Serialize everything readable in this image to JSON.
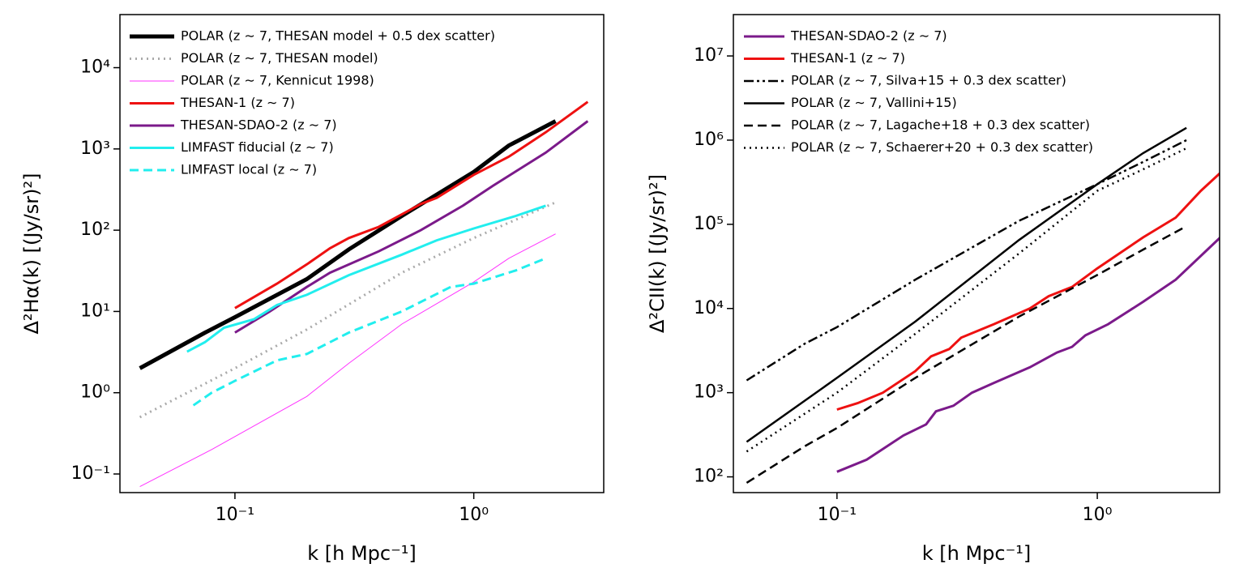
{
  "chart_data": [
    {
      "type": "line",
      "xlabel": "k [h Mpc⁻¹]",
      "ylabel": "Δ²Hα(k) [(Jy/sr)²]",
      "xscale": "log",
      "yscale": "log",
      "legend": "upper left",
      "xlim": [
        0.033,
        3.5
      ],
      "ylim": [
        0.059,
        45000
      ],
      "xticks": [
        {
          "value": 0.1,
          "label": "10⁻¹"
        },
        {
          "value": 1,
          "label": "10⁰"
        }
      ],
      "yticks": [
        {
          "value": 0.1,
          "label": "10⁻¹"
        },
        {
          "value": 1,
          "label": "10⁰"
        },
        {
          "value": 10,
          "label": "10¹"
        },
        {
          "value": 100,
          "label": "10²"
        },
        {
          "value": 1000,
          "label": "10³"
        },
        {
          "value": 10000,
          "label": "10⁴"
        }
      ],
      "series": [
        {
          "name": "POLAR (z ∼ 7, THESAN model + 0.5 dex scatter)",
          "color": "#000000",
          "linestyle": "solid",
          "linewidth": 5,
          "x": [
            0.04,
            0.075,
            0.1,
            0.2,
            0.3,
            0.5,
            1.0,
            1.4,
            2.2
          ],
          "values": [
            2.0,
            5.5,
            8.5,
            25,
            58,
            150,
            520,
            1100,
            2200
          ]
        },
        {
          "name": "POLAR (z ∼ 7, THESAN model)",
          "color": "#aaaaaa",
          "linestyle": "dotted",
          "linewidth": 3,
          "x": [
            0.04,
            0.1,
            0.2,
            0.5,
            1.0,
            2.2
          ],
          "values": [
            0.5,
            2.0,
            6,
            30,
            80,
            220
          ]
        },
        {
          "name": "POLAR (z ∼ 7, Kennicut 1998)",
          "color": "#ff33ff",
          "linestyle": "solid",
          "linewidth": 1,
          "x": [
            0.04,
            0.08,
            0.2,
            0.3,
            0.5,
            1.0,
            1.4,
            2.2
          ],
          "values": [
            0.07,
            0.2,
            0.9,
            2.3,
            7,
            23,
            45,
            90
          ]
        },
        {
          "name": "THESAN-1 (z ∼ 7)",
          "color": "#ee1111",
          "linestyle": "solid",
          "linewidth": 3,
          "x": [
            0.1,
            0.15,
            0.2,
            0.25,
            0.3,
            0.4,
            0.6,
            0.7,
            1.0,
            1.4,
            2.0,
            3.0
          ],
          "values": [
            11,
            22,
            38,
            60,
            80,
            110,
            210,
            250,
            480,
            800,
            1600,
            3800
          ]
        },
        {
          "name": "THESAN-SDAO-2 (z ∼ 7)",
          "color": "#7b1a8a",
          "linestyle": "solid",
          "linewidth": 3,
          "x": [
            0.1,
            0.14,
            0.2,
            0.25,
            0.4,
            0.6,
            0.9,
            1.2,
            2.0,
            3.0
          ],
          "values": [
            5.5,
            10,
            20,
            30,
            55,
            100,
            200,
            350,
            900,
            2200
          ]
        },
        {
          "name": "LIMFAST fiducial (z ∼ 7)",
          "color": "#22eeee",
          "linestyle": "solid",
          "linewidth": 3,
          "x": [
            0.063,
            0.075,
            0.09,
            0.12,
            0.15,
            0.2,
            0.3,
            0.5,
            0.7,
            1.0,
            1.5,
            2.0
          ],
          "values": [
            3.2,
            4.2,
            6.3,
            8,
            12,
            16,
            28,
            50,
            75,
            105,
            150,
            200
          ]
        },
        {
          "name": "LIMFAST local (z ∼ 7)",
          "color": "#22eeee",
          "linestyle": "dashed",
          "linewidth": 3,
          "x": [
            0.067,
            0.08,
            0.1,
            0.15,
            0.2,
            0.3,
            0.5,
            0.8,
            1.0,
            1.5,
            2.0
          ],
          "values": [
            0.7,
            1.0,
            1.4,
            2.5,
            3.0,
            5.5,
            10,
            20,
            22,
            32,
            45
          ]
        }
      ]
    },
    {
      "type": "line",
      "xlabel": "k [h Mpc⁻¹]",
      "ylabel": "Δ²CII(k) [(Jy/sr)²]",
      "xscale": "log",
      "yscale": "log",
      "legend": "upper left",
      "xlim": [
        0.04,
        2.95
      ],
      "ylim": [
        65,
        31000000
      ],
      "xticks": [
        {
          "value": 0.1,
          "label": "10⁻¹"
        },
        {
          "value": 1,
          "label": "10⁰"
        }
      ],
      "yticks": [
        {
          "value": 100,
          "label": "10²"
        },
        {
          "value": 1000,
          "label": "10³"
        },
        {
          "value": 10000,
          "label": "10⁴"
        },
        {
          "value": 100000,
          "label": "10⁵"
        },
        {
          "value": 1000000,
          "label": "10⁶"
        },
        {
          "value": 10000000,
          "label": "10⁷"
        }
      ],
      "series": [
        {
          "name": "THESAN-SDAO-2 (z ∼ 7)",
          "color": "#7b1a8a",
          "linestyle": "solid",
          "linewidth": 3,
          "x": [
            0.1,
            0.13,
            0.18,
            0.22,
            0.24,
            0.28,
            0.33,
            0.4,
            0.55,
            0.7,
            0.8,
            0.9,
            1.1,
            1.5,
            2.0,
            3.0
          ],
          "values": [
            115,
            160,
            310,
            420,
            600,
            700,
            1000,
            1300,
            2000,
            3000,
            3500,
            4800,
            6500,
            12000,
            22000,
            72000
          ]
        },
        {
          "name": "THESAN-1 (z ∼ 7)",
          "color": "#ee1111",
          "linestyle": "solid",
          "linewidth": 3,
          "x": [
            0.1,
            0.12,
            0.15,
            0.2,
            0.23,
            0.27,
            0.3,
            0.4,
            0.55,
            0.65,
            0.8,
            1.0,
            1.5,
            2.0,
            2.5,
            3.0
          ],
          "values": [
            630,
            750,
            1000,
            1800,
            2700,
            3300,
            4500,
            6500,
            10000,
            14000,
            18000,
            30000,
            70000,
            120000,
            250000,
            420000
          ]
        },
        {
          "name": "POLAR (z ∼ 7, Silva+15 + 0.3 dex scatter)",
          "color": "#000000",
          "linestyle": "dashdotdot",
          "linewidth": 2.5,
          "x": [
            0.045,
            0.075,
            0.1,
            0.2,
            0.5,
            1.0,
            1.5,
            2.2
          ],
          "values": [
            1400,
            3800,
            6000,
            22000,
            110000,
            300000,
            550000,
            1000000
          ]
        },
        {
          "name": "POLAR (z ∼ 7, Vallini+15)",
          "color": "#000000",
          "linestyle": "solid",
          "linewidth": 2.5,
          "x": [
            0.045,
            0.1,
            0.2,
            0.5,
            1.0,
            1.5,
            2.2
          ],
          "values": [
            260,
            1500,
            7000,
            65000,
            300000,
            700000,
            1400000
          ]
        },
        {
          "name": "POLAR (z ∼ 7, Lagache+18 + 0.3 dex scatter)",
          "color": "#000000",
          "linestyle": "dashed",
          "linewidth": 2.5,
          "x": [
            0.045,
            0.075,
            0.1,
            0.2,
            0.5,
            1.0,
            1.5,
            2.2
          ],
          "values": [
            85,
            230,
            380,
            1500,
            8000,
            25000,
            50000,
            95000
          ]
        },
        {
          "name": "POLAR (z ∼ 7, Schaerer+20 + 0.3 dex scatter)",
          "color": "#000000",
          "linestyle": "dotted",
          "linewidth": 2.5,
          "x": [
            0.045,
            0.1,
            0.2,
            0.5,
            1.0,
            1.5,
            2.2
          ],
          "values": [
            200,
            1000,
            5000,
            45000,
            250000,
            450000,
            800000
          ]
        }
      ]
    }
  ]
}
